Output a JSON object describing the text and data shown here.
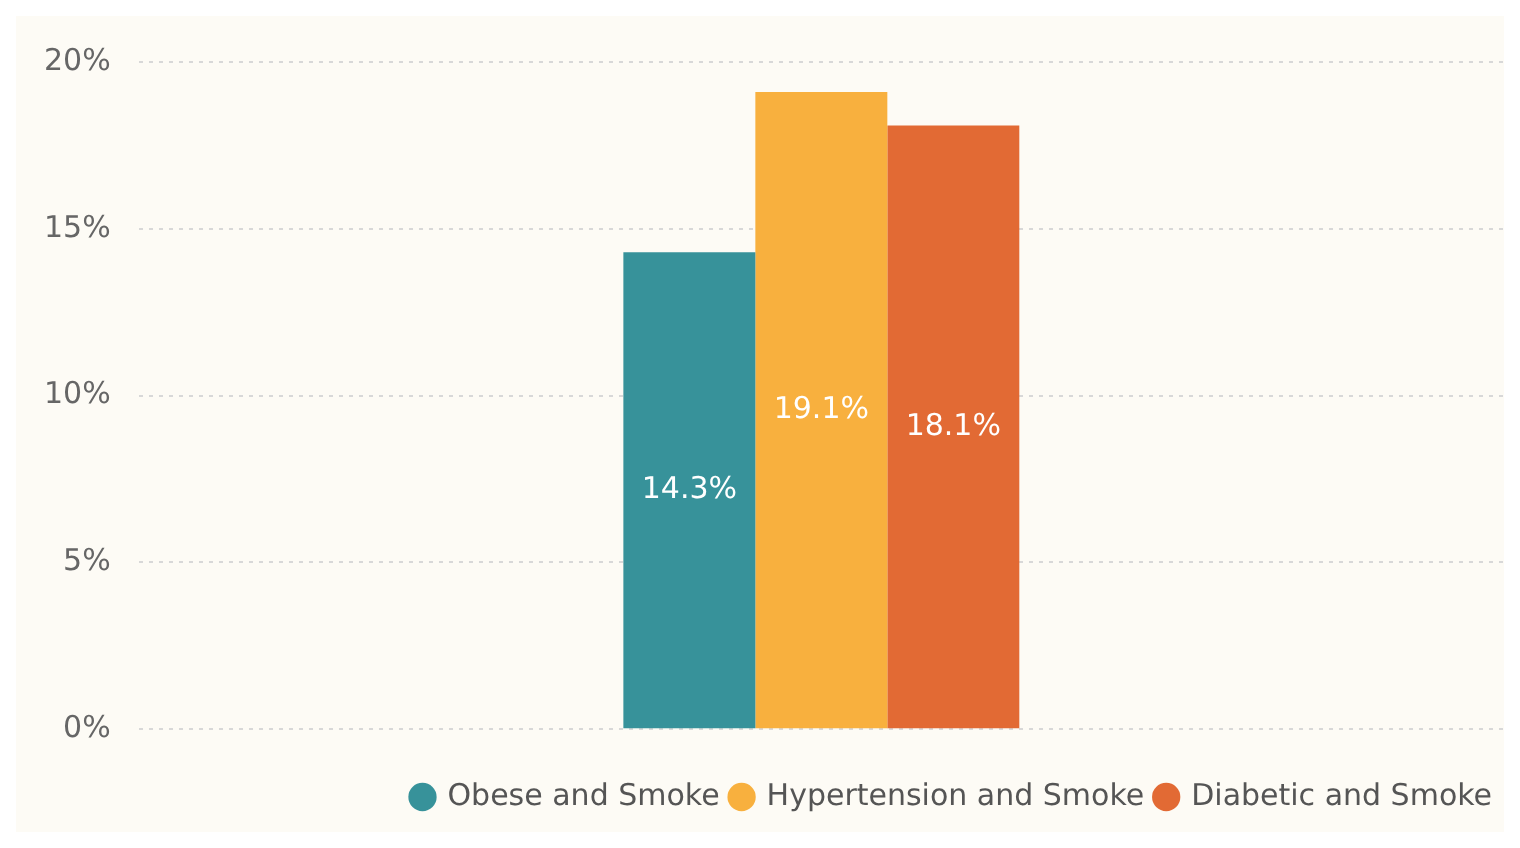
{
  "chart_data": {
    "type": "bar",
    "categories": [
      null
    ],
    "series": [
      {
        "name": "Obese and Smoke",
        "color": "#37929a",
        "values": [
          14.3
        ],
        "value_labels": [
          "14.3%"
        ]
      },
      {
        "name": "Hypertension and Smoke",
        "color": "#f8b03e",
        "values": [
          19.1
        ],
        "value_labels": [
          "19.1%"
        ]
      },
      {
        "name": "Diabetic and Smoke",
        "color": "#e26a34",
        "values": [
          18.1
        ],
        "value_labels": [
          "18.1%"
        ]
      }
    ],
    "ylim": [
      0,
      20
    ],
    "yticks": [
      {
        "value": 0,
        "label": "0%"
      },
      {
        "value": 5,
        "label": "5%"
      },
      {
        "value": 10,
        "label": "10%"
      },
      {
        "value": 15,
        "label": "15%"
      },
      {
        "value": 20,
        "label": "20%"
      }
    ],
    "grid": "y",
    "legend": "bottom"
  }
}
